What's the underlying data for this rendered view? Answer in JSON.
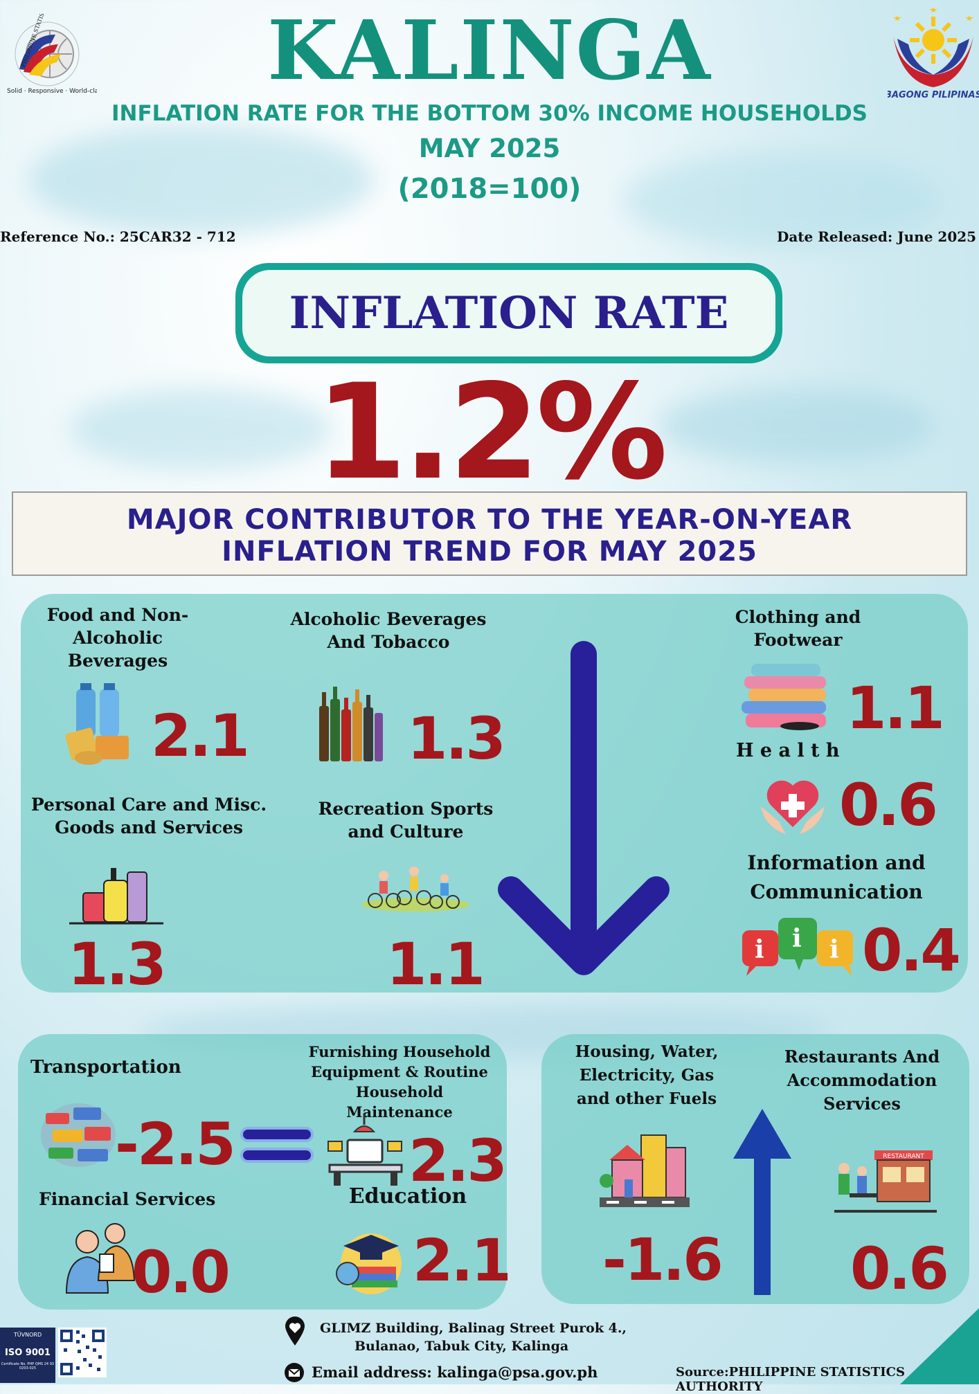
{
  "header": {
    "title": "KALINGA",
    "subtitle_line1": "INFLATION RATE FOR THE BOTTOM 30%  INCOME HOUSEHOLDS",
    "subtitle_line2": "MAY 2025",
    "subtitle_line3": "(2018=100)",
    "reference": "Reference No.: 25CAR32 - 712",
    "date_released": "Date Released: June  2025"
  },
  "logos": {
    "psa_arc_text": "PHILIPPINE STATISTICS AUTHORITY",
    "psa_tagline": "Solid · Responsive · World-class",
    "bagong_pilipinas": "BAGONG PILIPINAS"
  },
  "headline": {
    "label": "INFLATION RATE",
    "value": "1.2%"
  },
  "banner": {
    "line1": "MAJOR CONTRIBUTOR TO THE YEAR-ON-YEAR",
    "line2": "INFLATION TREND FOR MAY   2025"
  },
  "downward": {
    "food": {
      "label": "Food and Non-Alcoholic Beverages",
      "value": "2.1"
    },
    "alcohol": {
      "label": "Alcoholic Beverages And Tobacco",
      "value": "1.3"
    },
    "clothing": {
      "label": "Clothing and Footwear",
      "value": "1.1"
    },
    "health": {
      "label": "H e a l t h",
      "value": "0.6"
    },
    "personal": {
      "label": "Personal Care and Misc. Goods and Services",
      "value": "1.3"
    },
    "recreation": {
      "label": "Recreation Sports and Culture",
      "value": "1.1"
    },
    "info": {
      "label": "Information and Communication",
      "value": "0.4"
    }
  },
  "equal": {
    "transport": {
      "label": "Transportation",
      "value": "-2.5"
    },
    "furnishing": {
      "label": "Furnishing  Household Equipment & Routine Household Maintenance",
      "value": "2.3"
    },
    "financial": {
      "label": "Financial Services",
      "value": "0.0"
    },
    "education": {
      "label": "Education",
      "value": "2.1"
    }
  },
  "upward": {
    "housing": {
      "label": "Housing, Water, Electricity,  Gas and  other Fuels",
      "value": "-1.6"
    },
    "restaurants": {
      "label": "Restaurants And Accommodation Services",
      "value": "0.6"
    }
  },
  "footer": {
    "address_line1": "GLIMZ Building, Balinag Street Purok 4.,",
    "address_line2": "Bulanao, Tabuk City, Kalinga",
    "email": "Email address: kalinga@psa.gov.ph",
    "source": "Source:PHILIPPINE STATISTICS AUTHORITY",
    "iso": "ISO 9001",
    "cert_brand": "TÜVNORD",
    "cert_no": "Certificate No. PHP QMS 24 93 0203-025"
  },
  "colors": {
    "teal_title": "#14917c",
    "navy": "#2a1f8c",
    "red_value": "#a4171c",
    "panel": "#74cdc8"
  }
}
